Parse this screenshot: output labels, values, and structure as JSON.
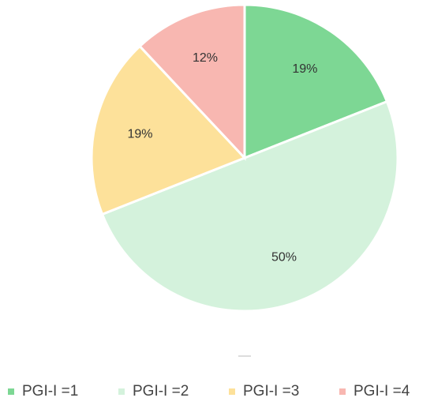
{
  "chart_data": {
    "type": "pie",
    "labels": [
      "PGI-I =1",
      "PGI-I =2",
      "PGI-I =3",
      "PGI-I =4"
    ],
    "values": [
      19,
      50,
      19,
      12
    ],
    "value_labels": [
      "19%",
      "50%",
      "19%",
      "12%"
    ],
    "colors": [
      "#7dd794",
      "#d4f2dc",
      "#fde19a",
      "#f8b7b1"
    ],
    "legend": "bottom"
  }
}
